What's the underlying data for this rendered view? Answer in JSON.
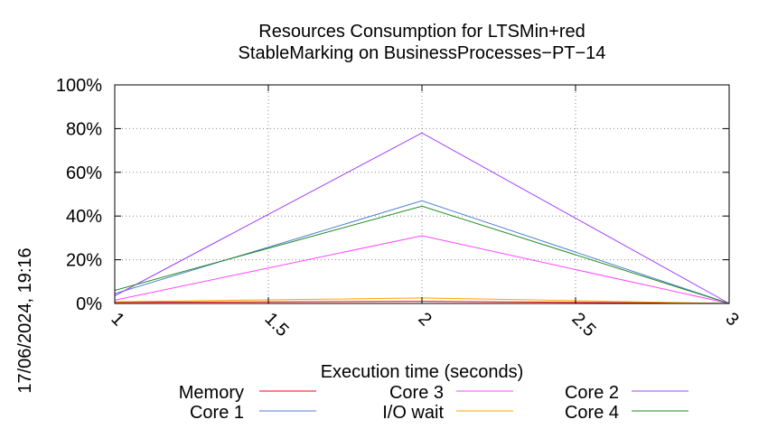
{
  "chart_data": {
    "type": "line",
    "title": [
      "Resources Consumption for LTSMin+red",
      "StableMarking on BusinessProcesses−PT−14"
    ],
    "xlabel": "Execution time (seconds)",
    "ylabel": "",
    "side_label": "17/06/2024, 19:16",
    "xlim": [
      1,
      3
    ],
    "ylim": [
      0,
      100
    ],
    "x_ticks": [
      {
        "value": 1,
        "label": "1"
      },
      {
        "value": 1.5,
        "label": "1.5"
      },
      {
        "value": 2,
        "label": "2"
      },
      {
        "value": 2.5,
        "label": "2.5"
      },
      {
        "value": 3,
        "label": "3"
      }
    ],
    "y_ticks": [
      {
        "value": 0,
        "label": "0%"
      },
      {
        "value": 20,
        "label": "20%"
      },
      {
        "value": 40,
        "label": "40%"
      },
      {
        "value": 60,
        "label": "60%"
      },
      {
        "value": 80,
        "label": "80%"
      },
      {
        "value": 100,
        "label": "100%"
      }
    ],
    "grid": true,
    "legend_position": "bottom",
    "series": [
      {
        "name": "Memory",
        "color": "#ff0000",
        "x": [
          1,
          2,
          3
        ],
        "y": [
          0.5,
          1.0,
          0.0
        ]
      },
      {
        "name": "I/O wait",
        "color": "#ffa500",
        "x": [
          1,
          2,
          3
        ],
        "y": [
          0.8,
          2.5,
          0.0
        ]
      },
      {
        "name": "Core 1",
        "color": "#4f7fd6",
        "x": [
          1,
          2,
          3
        ],
        "y": [
          4.5,
          47.0,
          0.0
        ]
      },
      {
        "name": "Core 2",
        "color": "#a040ff",
        "x": [
          1,
          2,
          3
        ],
        "y": [
          3.5,
          78.0,
          0.0
        ]
      },
      {
        "name": "Core 3",
        "color": "#ff44ff",
        "x": [
          1,
          2,
          3
        ],
        "y": [
          1.5,
          31.0,
          0.0
        ]
      },
      {
        "name": "Core 4",
        "color": "#228b22",
        "x": [
          1,
          2,
          3
        ],
        "y": [
          6.0,
          44.5,
          0.0
        ]
      }
    ]
  }
}
